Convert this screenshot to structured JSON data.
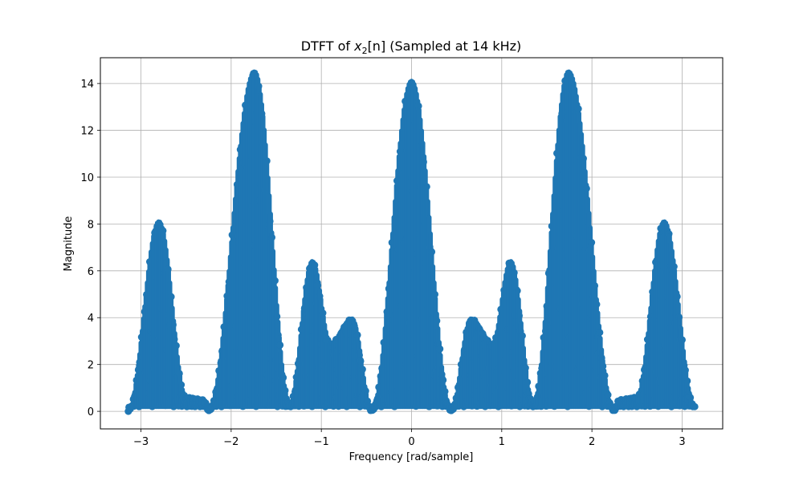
{
  "chart_data": {
    "type": "scatter",
    "title": "DTFT of x₂[n] (Sampled at 14 kHz)",
    "title_parts": {
      "prefix": "DTFT of ",
      "var": "x",
      "sub": "2",
      "bracket": "[n]",
      "suffix": " (Sampled at 14 kHz)"
    },
    "xlabel": "Frequency [rad/sample]",
    "ylabel": "Magnitude",
    "xlim": [
      -3.45,
      3.45
    ],
    "ylim": [
      -0.75,
      15.1
    ],
    "x_ticks": [
      -3,
      -2,
      -1,
      0,
      1,
      2,
      3
    ],
    "x_tick_labels": [
      "−3",
      "−2",
      "−1",
      "0",
      "1",
      "2",
      "3"
    ],
    "y_ticks": [
      0,
      2,
      4,
      6,
      8,
      10,
      12,
      14
    ],
    "y_tick_labels": [
      "0",
      "2",
      "4",
      "6",
      "8",
      "10",
      "12",
      "14"
    ],
    "grid": true,
    "marker_color": "#1f77b4",
    "envelope": {
      "description_points_x": [
        -3.14,
        -2.8,
        -2.5,
        -2.3,
        -2.25,
        -1.74,
        -1.35,
        -1.1,
        -0.9,
        -0.66,
        -0.44,
        0.0,
        0.44,
        0.66,
        0.9,
        1.1,
        1.35,
        1.74,
        2.25,
        2.3,
        2.5,
        2.8,
        3.14
      ],
      "description_points_y": [
        0.0,
        8.1,
        0.6,
        0.5,
        0.0,
        14.5,
        0.3,
        6.4,
        2.9,
        3.95,
        0.0,
        14.1,
        0.0,
        3.95,
        2.9,
        6.4,
        0.3,
        14.5,
        0.0,
        0.5,
        0.6,
        8.1,
        0.2
      ]
    }
  }
}
